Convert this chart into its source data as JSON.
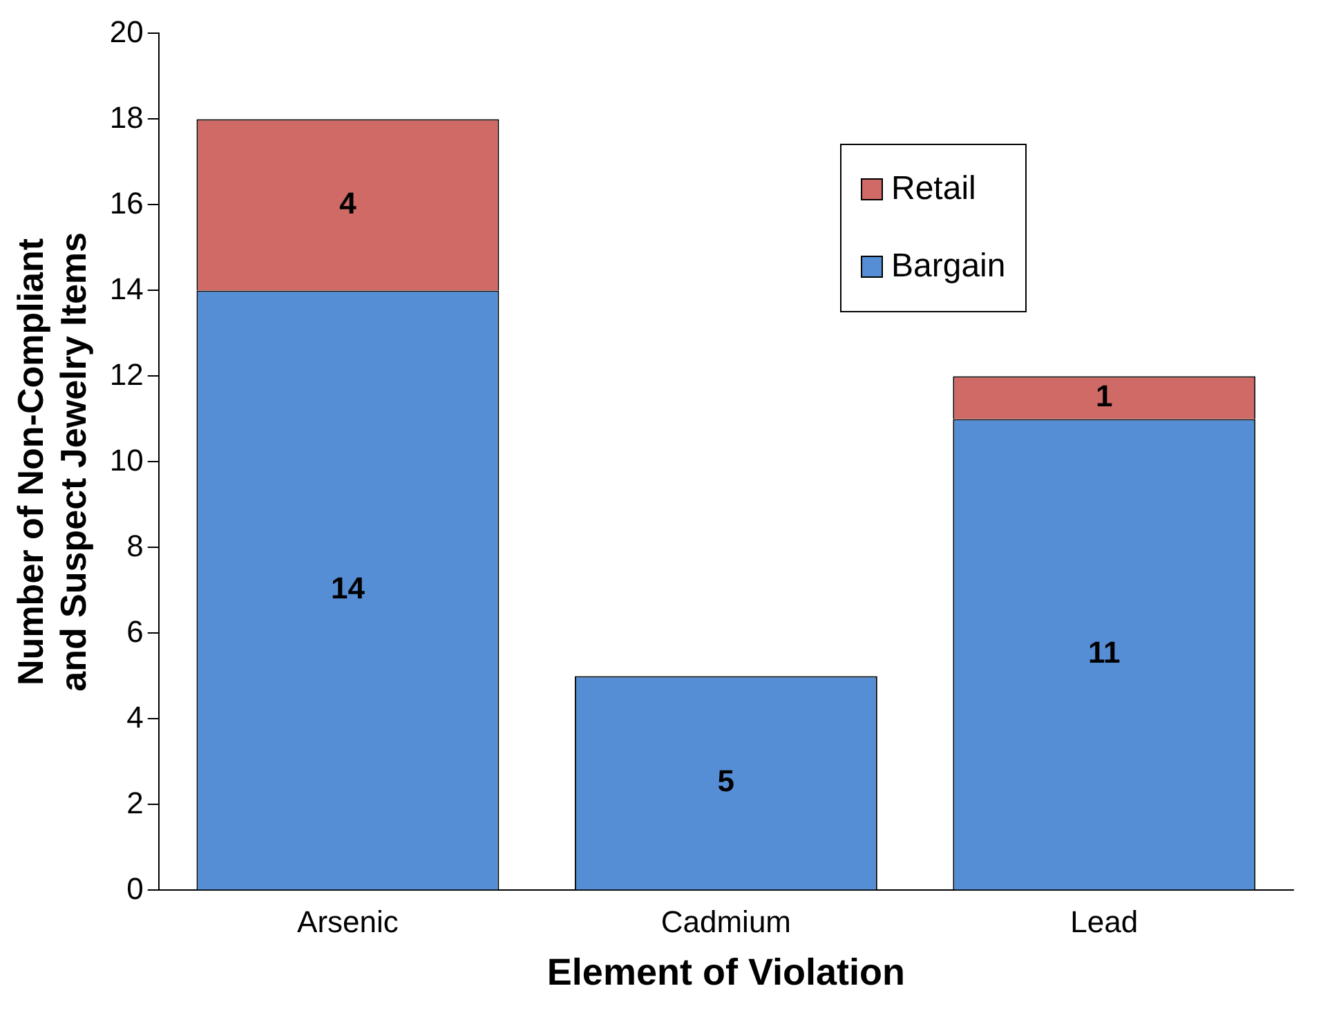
{
  "chart_data": {
    "type": "bar",
    "xlabel": "Element of Violation",
    "ylabel": "Number of Non-Compliant and Suspect Jewelry Items",
    "categories": [
      "Arsenic",
      "Cadmium",
      "Lead"
    ],
    "series": [
      {
        "name": "Bargain",
        "color": "#558ed5",
        "values": [
          14,
          5,
          11
        ]
      },
      {
        "name": "Retail",
        "color": "#d06a66",
        "values": [
          4,
          null,
          1
        ]
      }
    ],
    "stacked": true,
    "ylim": [
      0,
      20
    ],
    "yticks": [
      0,
      2,
      4,
      6,
      8,
      10,
      12,
      14,
      16,
      18,
      20
    ],
    "grid": false,
    "legend": "top right",
    "data_labels": true
  }
}
